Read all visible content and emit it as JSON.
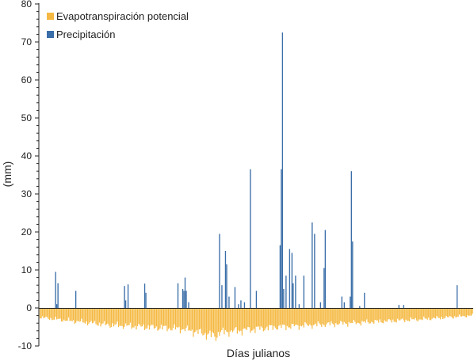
{
  "chart_data": {
    "type": "bar",
    "title": "",
    "xlabel": "Días julianos",
    "ylabel": "(mm)",
    "ylim": [
      -10,
      80
    ],
    "yticks": [
      -10,
      0,
      10,
      20,
      30,
      40,
      50,
      60,
      70,
      80
    ],
    "x_range": [
      1,
      365
    ],
    "grid": false,
    "legend_position": "top-left",
    "series": [
      {
        "name": "Evapotranspiración potencial",
        "color": "#f5b942",
        "segments": [
          {
            "x": [
              1,
              30
            ],
            "values": [
              -2.5,
              -3.5
            ]
          },
          {
            "x": [
              31,
              60
            ],
            "values": [
              -3.5,
              -4.5
            ]
          },
          {
            "x": [
              61,
              120
            ],
            "values": [
              -4.5,
              -5.5
            ]
          },
          {
            "x": [
              121,
              150
            ],
            "values": [
              -5.5,
              -7.5
            ]
          },
          {
            "x": [
              151,
              200
            ],
            "values": [
              -6.5,
              -5.0
            ]
          },
          {
            "x": [
              201,
              260
            ],
            "values": [
              -5.0,
              -4.0
            ]
          },
          {
            "x": [
              261,
              320
            ],
            "values": [
              -4.0,
              -3.0
            ]
          },
          {
            "x": [
              321,
              365
            ],
            "values": [
              -3.0,
              -2.0
            ]
          }
        ]
      },
      {
        "name": "Precipitación",
        "color": "#3a6ea8",
        "points": [
          {
            "x": 14,
            "y": 9.5
          },
          {
            "x": 15,
            "y": 1.0
          },
          {
            "x": 16,
            "y": 6.5
          },
          {
            "x": 31,
            "y": 4.5
          },
          {
            "x": 72,
            "y": 5.8
          },
          {
            "x": 73,
            "y": 2.0
          },
          {
            "x": 75,
            "y": 6.2
          },
          {
            "x": 89,
            "y": 6.4
          },
          {
            "x": 90,
            "y": 4.0
          },
          {
            "x": 117,
            "y": 6.5
          },
          {
            "x": 121,
            "y": 5.0
          },
          {
            "x": 122,
            "y": 4.5
          },
          {
            "x": 123,
            "y": 8.0
          },
          {
            "x": 124,
            "y": 4.5
          },
          {
            "x": 126,
            "y": 1.5
          },
          {
            "x": 152,
            "y": 19.5
          },
          {
            "x": 154,
            "y": 6.0
          },
          {
            "x": 157,
            "y": 15.0
          },
          {
            "x": 158,
            "y": 11.5
          },
          {
            "x": 160,
            "y": 3.0
          },
          {
            "x": 165,
            "y": 5.5
          },
          {
            "x": 168,
            "y": 1.0
          },
          {
            "x": 170,
            "y": 2.0
          },
          {
            "x": 173,
            "y": 1.5
          },
          {
            "x": 178,
            "y": 36.5
          },
          {
            "x": 183,
            "y": 4.5
          },
          {
            "x": 203,
            "y": 16.5
          },
          {
            "x": 204,
            "y": 36.5
          },
          {
            "x": 205,
            "y": 72.5
          },
          {
            "x": 206,
            "y": 5.0
          },
          {
            "x": 208,
            "y": 8.5
          },
          {
            "x": 211,
            "y": 15.5
          },
          {
            "x": 213,
            "y": 14.5
          },
          {
            "x": 214,
            "y": 6.5
          },
          {
            "x": 216,
            "y": 8.5
          },
          {
            "x": 219,
            "y": 1.0
          },
          {
            "x": 223,
            "y": 8.5
          },
          {
            "x": 230,
            "y": 22.5
          },
          {
            "x": 232,
            "y": 19.5
          },
          {
            "x": 237,
            "y": 1.5
          },
          {
            "x": 240,
            "y": 10.5
          },
          {
            "x": 241,
            "y": 20.5
          },
          {
            "x": 255,
            "y": 3.0
          },
          {
            "x": 257,
            "y": 1.5
          },
          {
            "x": 262,
            "y": 3.0
          },
          {
            "x": 263,
            "y": 36.0
          },
          {
            "x": 264,
            "y": 17.5
          },
          {
            "x": 270,
            "y": 0.5
          },
          {
            "x": 274,
            "y": 4.0
          },
          {
            "x": 303,
            "y": 0.8
          },
          {
            "x": 307,
            "y": 0.8
          },
          {
            "x": 352,
            "y": 6.0
          }
        ]
      }
    ]
  }
}
